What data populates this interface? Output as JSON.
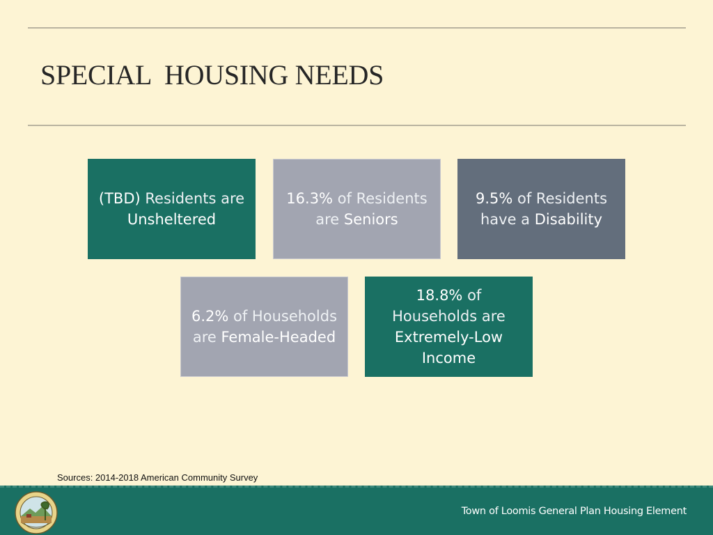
{
  "slide": {
    "title": "SPECIAL  HOUSING NEEDS"
  },
  "tiles": [
    {
      "stat": "(TBD)",
      "text_a": " Residents are",
      "text_b": "Unsheltered"
    },
    {
      "stat": "16.3%",
      "text_a": " of Residents",
      "text_pre": "are ",
      "text_b": "Seniors"
    },
    {
      "stat": "9.5%",
      "text_a": " of Residents",
      "text_pre": "have a ",
      "text_b": "Disability"
    },
    {
      "stat": "6.2%",
      "text_a": " of Households",
      "text_pre": "are ",
      "text_b": "Female-Headed"
    },
    {
      "stat": "18.8%",
      "text_a": " of",
      "text_pre": "Households are",
      "text_b": "Extremely-Low",
      "text_c": "Income"
    }
  ],
  "sources": "Sources: 2014-2018 American Community Survey",
  "footer": {
    "text": "Town of Loomis General Plan Housing Element",
    "logo_icon": "town-seal-icon",
    "logo_lettering": "LOOMIS"
  },
  "colors": {
    "background": "#fdf4d4",
    "teal": "#1a7063",
    "grey": "#a2a5b1",
    "slate": "#636e7c"
  }
}
